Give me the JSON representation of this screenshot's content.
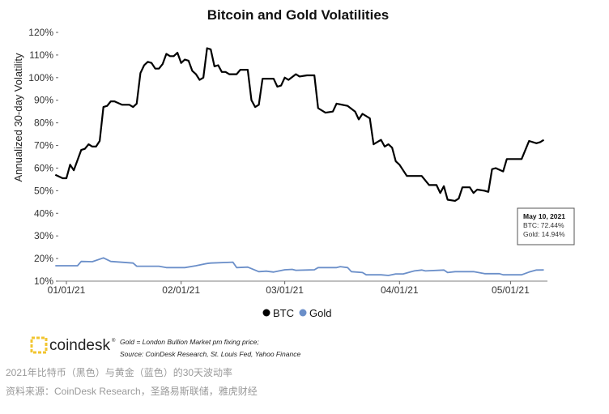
{
  "chart_data": {
    "type": "line",
    "title": "Bitcoin and Gold Volatilities",
    "xlabel": "",
    "ylabel": "Annualized 30-day Volatility",
    "ylim": [
      10,
      120
    ],
    "yticks": [
      "120%",
      "110%",
      "100%",
      "90%",
      "80%",
      "70%",
      "60%",
      "50%",
      "40%",
      "30%",
      "20%",
      "10%"
    ],
    "xlim": [
      "2020-12-29",
      "2021-05-10"
    ],
    "xticks": [
      {
        "date": "2021-01-01",
        "label": "01/01/21"
      },
      {
        "date": "2021-02-01",
        "label": "02/01/21"
      },
      {
        "date": "2021-03-01",
        "label": "03/01/21"
      },
      {
        "date": "2021-04-01",
        "label": "04/01/21"
      },
      {
        "date": "2021-05-01",
        "label": "05/01/21"
      }
    ],
    "grid": false,
    "legend_position": "bottom",
    "series": [
      {
        "name": "BTC",
        "color": "#000000",
        "points": [
          [
            "2020-12-29",
            57
          ],
          [
            "2020-12-31",
            55.5
          ],
          [
            "2021-01-01",
            55.5
          ],
          [
            "2021-01-02",
            61.5
          ],
          [
            "2021-01-03",
            59
          ],
          [
            "2021-01-05",
            68
          ],
          [
            "2021-01-06",
            68.5
          ],
          [
            "2021-01-07",
            70.5
          ],
          [
            "2021-01-08",
            69.5
          ],
          [
            "2021-01-09",
            69.5
          ],
          [
            "2021-01-10",
            72
          ],
          [
            "2021-01-11",
            87
          ],
          [
            "2021-01-12",
            87.5
          ],
          [
            "2021-01-13",
            89.5
          ],
          [
            "2021-01-14",
            89.5
          ],
          [
            "2021-01-16",
            88
          ],
          [
            "2021-01-18",
            88
          ],
          [
            "2021-01-19",
            87
          ],
          [
            "2021-01-20",
            88.5
          ],
          [
            "2021-01-21",
            102
          ],
          [
            "2021-01-22",
            105.5
          ],
          [
            "2021-01-23",
            107
          ],
          [
            "2021-01-24",
            106.5
          ],
          [
            "2021-01-25",
            104
          ],
          [
            "2021-01-26",
            104
          ],
          [
            "2021-01-27",
            106
          ],
          [
            "2021-01-28",
            110.5
          ],
          [
            "2021-01-29",
            109.5
          ],
          [
            "2021-01-30",
            109.5
          ],
          [
            "2021-01-31",
            111
          ],
          [
            "2021-02-01",
            106.5
          ],
          [
            "2021-02-02",
            108
          ],
          [
            "2021-02-03",
            107.5
          ],
          [
            "2021-02-04",
            103
          ],
          [
            "2021-02-05",
            101.5
          ],
          [
            "2021-02-06",
            99
          ],
          [
            "2021-02-07",
            100
          ],
          [
            "2021-02-08",
            113
          ],
          [
            "2021-02-09",
            112.5
          ],
          [
            "2021-02-10",
            105
          ],
          [
            "2021-02-11",
            105.5
          ],
          [
            "2021-02-12",
            102.5
          ],
          [
            "2021-02-13",
            102.5
          ],
          [
            "2021-02-14",
            101.5
          ],
          [
            "2021-02-16",
            101.5
          ],
          [
            "2021-02-17",
            103.5
          ],
          [
            "2021-02-19",
            103.5
          ],
          [
            "2021-02-20",
            90
          ],
          [
            "2021-02-21",
            87
          ],
          [
            "2021-02-22",
            88
          ],
          [
            "2021-02-23",
            99.5
          ],
          [
            "2021-02-26",
            99.5
          ],
          [
            "2021-02-27",
            96
          ],
          [
            "2021-02-28",
            96.5
          ],
          [
            "2021-03-01",
            100
          ],
          [
            "2021-03-02",
            99
          ],
          [
            "2021-03-04",
            101.5
          ],
          [
            "2021-03-05",
            100.5
          ],
          [
            "2021-03-07",
            101
          ],
          [
            "2021-03-09",
            101
          ],
          [
            "2021-03-10",
            86.5
          ],
          [
            "2021-03-12",
            84.5
          ],
          [
            "2021-03-14",
            85
          ],
          [
            "2021-03-15",
            88.5
          ],
          [
            "2021-03-18",
            87.5
          ],
          [
            "2021-03-20",
            85
          ],
          [
            "2021-03-21",
            81.5
          ],
          [
            "2021-03-22",
            84
          ],
          [
            "2021-03-24",
            82
          ],
          [
            "2021-03-25",
            70.5
          ],
          [
            "2021-03-27",
            72.5
          ],
          [
            "2021-03-28",
            69.5
          ],
          [
            "2021-03-29",
            70.5
          ],
          [
            "2021-03-30",
            69
          ],
          [
            "2021-03-31",
            63
          ],
          [
            "2021-04-01",
            61.5
          ],
          [
            "2021-04-03",
            56.5
          ],
          [
            "2021-04-06",
            56.5
          ],
          [
            "2021-04-07",
            56.5
          ],
          [
            "2021-04-09",
            52.5
          ],
          [
            "2021-04-11",
            52.5
          ],
          [
            "2021-04-12",
            49
          ],
          [
            "2021-04-13",
            52
          ],
          [
            "2021-04-14",
            46
          ],
          [
            "2021-04-16",
            45.5
          ],
          [
            "2021-04-17",
            46.5
          ],
          [
            "2021-04-18",
            51.5
          ],
          [
            "2021-04-20",
            51.5
          ],
          [
            "2021-04-21",
            49
          ],
          [
            "2021-04-22",
            50.5
          ],
          [
            "2021-04-24",
            50
          ],
          [
            "2021-04-25",
            49.5
          ],
          [
            "2021-04-26",
            59.5
          ],
          [
            "2021-04-27",
            60
          ],
          [
            "2021-04-29",
            58.5
          ],
          [
            "2021-04-30",
            64
          ],
          [
            "2021-05-02",
            64
          ],
          [
            "2021-05-04",
            64
          ],
          [
            "2021-05-06",
            72
          ],
          [
            "2021-05-08",
            71
          ],
          [
            "2021-05-09",
            71.5
          ],
          [
            "2021-05-10",
            72.44
          ]
        ]
      },
      {
        "name": "Gold",
        "color": "#6b8fc9",
        "points": [
          [
            "2020-12-29",
            16.8
          ],
          [
            "2021-01-04",
            16.8
          ],
          [
            "2021-01-05",
            18.7
          ],
          [
            "2021-01-08",
            18.6
          ],
          [
            "2021-01-11",
            20.3
          ],
          [
            "2021-01-13",
            18.7
          ],
          [
            "2021-01-19",
            18
          ],
          [
            "2021-01-20",
            16.6
          ],
          [
            "2021-01-26",
            16.6
          ],
          [
            "2021-01-28",
            16
          ],
          [
            "2021-02-02",
            16
          ],
          [
            "2021-02-05",
            16.8
          ],
          [
            "2021-02-08",
            17.8
          ],
          [
            "2021-02-09",
            18
          ],
          [
            "2021-02-15",
            18.4
          ],
          [
            "2021-02-16",
            16
          ],
          [
            "2021-02-19",
            16.2
          ],
          [
            "2021-02-22",
            14.2
          ],
          [
            "2021-02-24",
            14.4
          ],
          [
            "2021-02-26",
            14
          ],
          [
            "2021-03-01",
            15
          ],
          [
            "2021-03-03",
            15.2
          ],
          [
            "2021-03-04",
            14.8
          ],
          [
            "2021-03-09",
            15
          ],
          [
            "2021-03-10",
            16
          ],
          [
            "2021-03-15",
            16
          ],
          [
            "2021-03-16",
            16.4
          ],
          [
            "2021-03-18",
            16
          ],
          [
            "2021-03-19",
            14.2
          ],
          [
            "2021-03-22",
            13.8
          ],
          [
            "2021-03-23",
            12.8
          ],
          [
            "2021-03-27",
            12.8
          ],
          [
            "2021-03-29",
            12.5
          ],
          [
            "2021-03-31",
            13.2
          ],
          [
            "2021-04-02",
            13.2
          ],
          [
            "2021-04-05",
            14.5
          ],
          [
            "2021-04-07",
            14.9
          ],
          [
            "2021-04-08",
            14.5
          ],
          [
            "2021-04-13",
            14.9
          ],
          [
            "2021-04-14",
            13.8
          ],
          [
            "2021-04-16",
            14.2
          ],
          [
            "2021-04-21",
            14.2
          ],
          [
            "2021-04-24",
            13.3
          ],
          [
            "2021-04-28",
            13.3
          ],
          [
            "2021-04-29",
            12.8
          ],
          [
            "2021-05-04",
            12.8
          ],
          [
            "2021-05-06",
            14
          ],
          [
            "2021-05-08",
            14.9
          ],
          [
            "2021-05-10",
            14.94
          ]
        ]
      }
    ],
    "tooltip": {
      "date": "May 10, 2021",
      "btc": "BTC: 72.44%",
      "gold": "Gold: 14.94%"
    }
  },
  "legend": {
    "btc": "BTC",
    "gold": "Gold"
  },
  "footer": {
    "logo_text": "coindesk",
    "logo_mark": "®",
    "note_line1": "Gold = London Bullion Market pm fixing price;",
    "note_line2": "Source: CoinDesk Research, St. Louis Fed, Yahoo Finance"
  },
  "caption": {
    "line1": "2021年比特币（黑色）与黄金（蓝色）的30天波动率",
    "line2": "资料来源：CoinDesk Research，圣路易斯联储，雅虎财经"
  }
}
